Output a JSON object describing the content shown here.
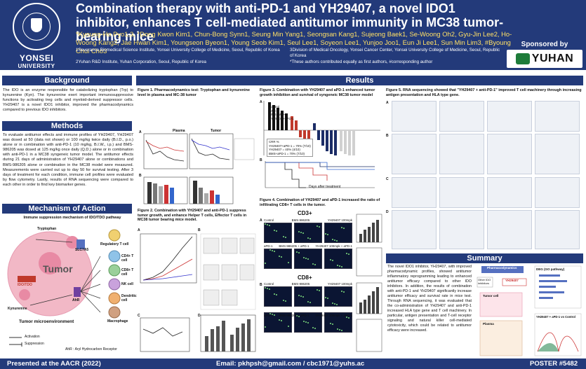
{
  "header": {
    "title": "Combination therapy with anti-PD-1 and YH29407, a novel IDO1 inhibitor, enhances T cell-mediated antitumor immunity in MC38 tumor-bearing mice",
    "authors": "*Kyoung-Ho Pyo1,3, *Dong Kwon Kim1, Chun-Bong Synn1, Seung Min Yang1, Seongsan Kang1, Sujeong Baek1, Se-Woong Oh2, Gyu-Jin Lee2, Ho-Woong Kang2, Jae Hwan Kim1, Youngseon Byeon1, Young Seob Kim1, Seul Lee1, Soyeon Lee1, Yunjoo Joo1, Eun Ji Lee1, Sun Min Lim3, #Byoung Chul Cho3",
    "affil_1": "1Severance Biomedical Science Institute, Yonsei University College of Medicine, Seoul, Republic of Korea",
    "affil_2": "2Yuhan R&D Institute, Yuhan Corporation, Seoul, Republic of Korea",
    "affil_3": "3Division of Medical Oncology, Yonsei Cancer Center, Yonsei University College of Medicine, Seoul, Republic of Korea",
    "affil_note": "*These authors contributed equally as first authors, #corresponding author",
    "logo_name": "YONSEI",
    "logo_sub": "UNIVERSITY",
    "sponsor_label": "Sponsored by",
    "sponsor_name": "YUHAN"
  },
  "background": {
    "heading": "Background",
    "text": "The IDO is an enzyme responsible for catabolizing tryptophan (Trp) to kynurenine (Kyn). The kynurenine exert important immunosuppressive functions by activating treg cells and myeloid-derived suppressor cells. YH29407 is a novel IDO1 inhibitor, improved the pharmacodynamics compared to previous IDO inhibitors."
  },
  "methods": {
    "heading": "Methods",
    "text": "To evaluate antitumor effects and immune profiles of YH29407, YH29407 was dosed at 50 (data not shown) or 100 mg/kg twice daily (B.I.D., p.o.) alone or in combination with anti-PD-1 (10 mg/kg, B.I.W., i.p.) and BMS-986205 was dosed at 125 mg/kg once daily (Q.D.) alone or in combination with anti-PD-1 in a MC38 syngeneic tumor model. The antitumor effects during 21 days of administration of YH29407 alone or combinations and BMS-986205 alone or combination in the MC38 model were measured. Measurements were carried out up to day 50 for survival testing. After 3 days of treatment for each condition, immune cell profiles were evaluated by flow cytometry. Lastly, results of RNA sequencing were compared to each other in order to find key biomarker genes."
  },
  "moa": {
    "heading": "Mechanism of Action",
    "subtitle": "Immune suppression mechanism of IDO/TDO pathway",
    "tumor": "Tumor",
    "tumor_env": "Tumor microenvironment",
    "tryptophan": "Tryptophan",
    "kynurenine": "Kynurenine",
    "ido_tdo": "IDO/TDO",
    "slc": "SLC7A5",
    "ahr": "AhR",
    "cells": [
      "Regulatory T cell",
      "CD4+ T cell",
      "CD8+ T cell",
      "NK cell",
      "Dendritic cell",
      "Macrophage"
    ],
    "legend_activation": "Activation",
    "legend_suppression": "Suppression",
    "ahr_note": "AhR : Aryl Hydrocarbon Receptor"
  },
  "results": {
    "heading": "Results",
    "fig1_caption": "Figure 1. Pharmacodynamics test: Tryptophan and kynurenine level in plasma and MC-38 tumor",
    "fig2_caption": "Figure 2. Combination with YH29407 and anti-PD-1 suppress tumor growth, and enhance Helper T cells, Effector T cells in MC38 tumor bearing mice model.",
    "fig3_caption": "Figure 3. Combination with YH29407 and aPD-1 enhanced tumor growth inhibition and survival of syngeneic MC38 tumor model",
    "fig4_caption": "Figure 4. Combination of YH29407 and aPD-1 increased the ratio of infiltrating CD8+ T cells in the tumor.",
    "fig5_caption": "Figure 5. RNA sequencing showed that \"YH29407 + anti-PD-1\" improved T cell machinery through increasing antigen presentation and HLA type gene.",
    "fig4_cd3": "CD3+",
    "fig4_cd8": "CD8+",
    "fig4_cols": [
      "Control",
      "BMS-986205",
      "YH29407 100mpk"
    ],
    "fig4_cols2": [
      "aPD-1",
      "BMS-986205 + aPD-1",
      "YH29407 100mpk + aPD-1"
    ],
    "fig1_plasma": "Plasma",
    "fig1_tumor": "Tumor",
    "panel_letters": [
      "A",
      "B",
      "C",
      "D"
    ],
    "fig3_legend": [
      "Control",
      "aPD-1",
      "BMS+aPD-1",
      "YH29407 +aPD-1"
    ],
    "fig3_stats": [
      "CRR %",
      "YH29407+aPD-1 = 70% (7/10)",
      "YH29407 = 40% (4/10)",
      "BMS+aPD-1 = 70% (7/10)"
    ],
    "fig3_days_label": "Days after treatment"
  },
  "summary": {
    "heading": "Summary",
    "text": "The novel IDO1 inhibitor, YH29407, with improved pharmacodynamic profiles, showed antitumor inflammatory reprogramming leading to enhanced antitumor efficacy compared to other IDO inhibitors. In addition, the results of combination with anti-PD-1 and YH29407 significantly increase antitumor efficacy and survival rate in mice test. Through RNA sequencing, it was evaluated that the co-administration of YH29407 and anti-PD-1 increased HLA type gene and T cell machinery. In particular, antigen presentation and T-cell receptor signaling and natural killer cell-mediated cytotoxicity, which could be related to antitumor efficacy were increased.",
    "fig_labels": [
      "Pharmacodynamics",
      "YH29407",
      "Other IDO inhibitors",
      "Tumor cell",
      "Plasma",
      "DEG (GO pathway)",
      "YH29407 + aPD-1 vs Control"
    ]
  },
  "footer": {
    "left": "Presented at the AACR (2022)",
    "email": "Email: pkhpsh@gmail.com / cbc1971@yuhs.ac",
    "poster": "POSTER #5482"
  },
  "colors": {
    "navy": "#233a7a",
    "author_yellow": "#ffe066",
    "tumor_pink": "#f2b8c6",
    "sponsor_green": "#1e7c3a"
  }
}
